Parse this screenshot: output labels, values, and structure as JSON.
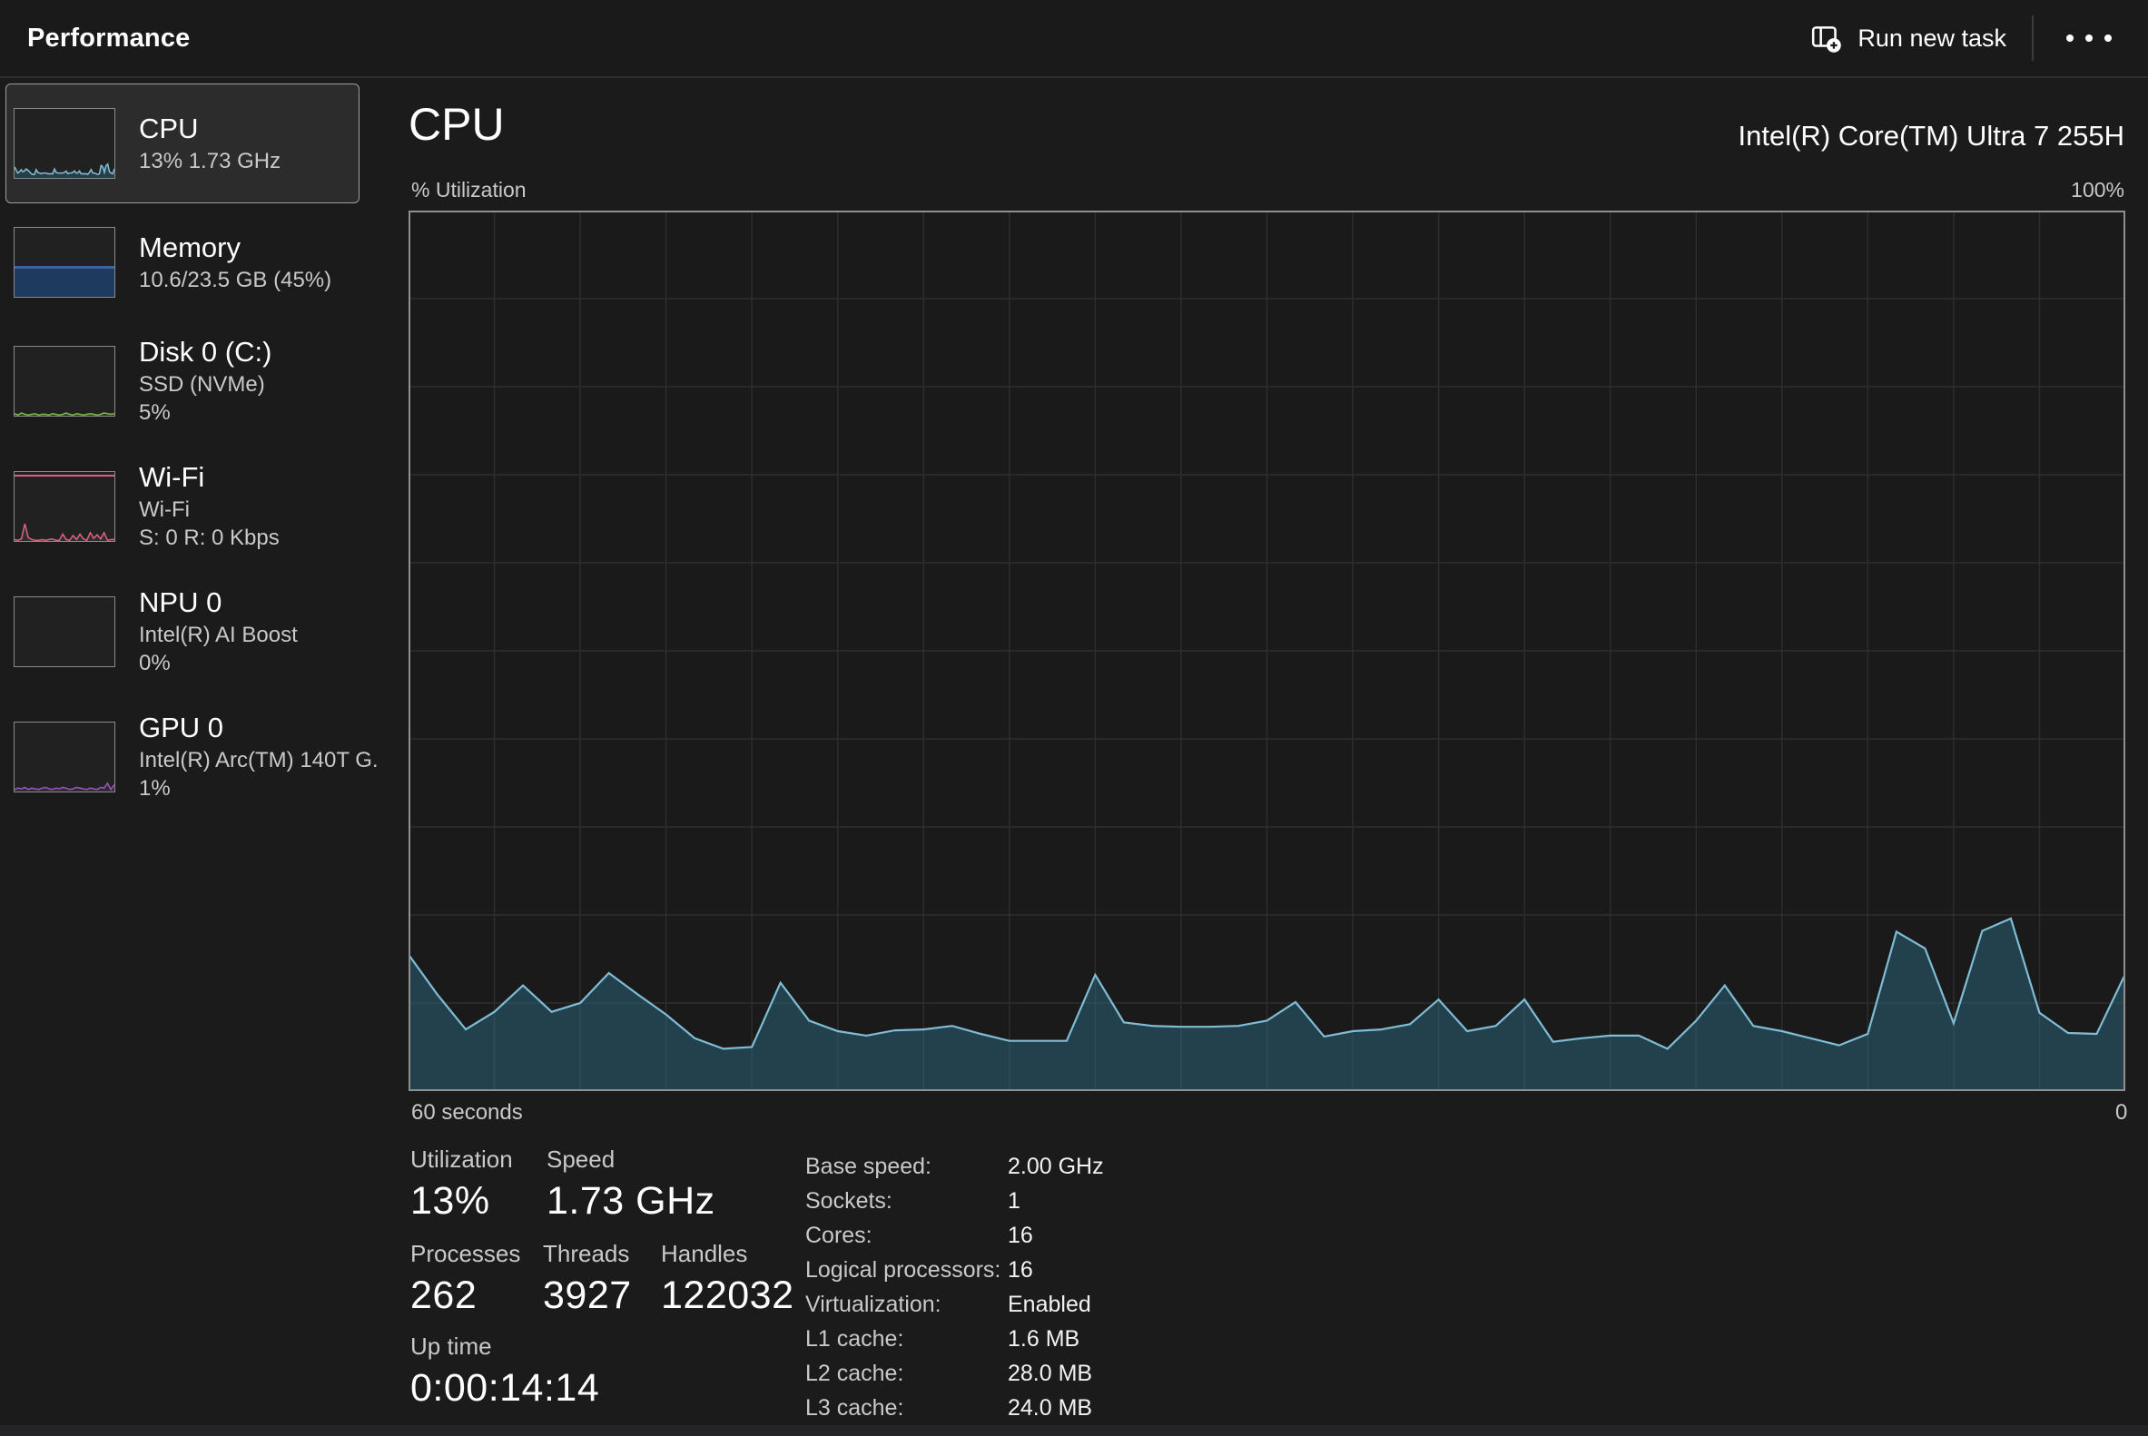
{
  "app": {
    "title": "Performance"
  },
  "toolbar": {
    "run_new_task": "Run new task",
    "more_options_icon": "ellipsis-horizontal"
  },
  "colors": {
    "background": "#1b1b1b",
    "chart_line": "#7fbcd6",
    "chart_fill": "rgba(47,118,145,0.42)",
    "chart_grid": "#2e2e2e",
    "chart_border": "#8f8f8f",
    "memory_fill": "#1e3a5f",
    "memory_edge": "#3a64a0",
    "disk_accent": "#7bb24a",
    "wifi_accent": "#d9607e",
    "gpu_accent": "#9b4fc0",
    "selected_border": "#9e9e9e"
  },
  "sidebar": {
    "items": [
      {
        "id": "cpu",
        "title": "CPU",
        "lines": [
          "13%  1.73 GHz"
        ],
        "selected": true,
        "accent": "#7fbcd6",
        "spark_scale": 100,
        "spark": [
          16,
          11,
          7,
          9,
          12,
          9,
          10,
          13,
          11,
          9,
          6,
          5,
          5,
          12,
          8,
          7,
          6,
          7,
          7,
          7,
          6,
          6,
          6,
          6,
          13,
          8,
          7,
          7,
          7,
          7,
          8,
          10,
          6,
          7,
          7,
          8,
          10,
          7,
          7,
          10,
          6,
          6,
          6,
          6,
          5,
          8,
          12,
          7,
          7,
          6,
          5,
          6,
          18,
          16,
          8,
          18,
          20,
          9,
          7,
          6,
          13
        ]
      },
      {
        "id": "memory",
        "title": "Memory",
        "lines": [
          "10.6/23.5 GB (45%)"
        ],
        "selected": false,
        "accent": "#3a64a0",
        "fill_percent": 45,
        "spark": []
      },
      {
        "id": "disk0",
        "title": "Disk 0 (C:)",
        "lines": [
          "SSD (NVMe)",
          "5%"
        ],
        "selected": false,
        "accent": "#7bb24a",
        "spark_scale": 100,
        "spark": [
          3,
          1,
          4,
          2,
          1,
          2,
          3,
          1,
          2,
          2,
          1,
          3,
          2,
          1,
          2,
          4,
          2,
          1,
          3,
          2,
          1,
          2,
          3,
          2,
          1,
          2,
          4,
          3,
          2,
          3
        ]
      },
      {
        "id": "wifi",
        "title": "Wi-Fi",
        "lines": [
          "Wi-Fi",
          "S: 0 R: 0 Kbps"
        ],
        "selected": false,
        "accent": "#d9607e",
        "topline": true,
        "spark_scale": 100,
        "spark": [
          2,
          1,
          3,
          25,
          5,
          2,
          1,
          1,
          2,
          1,
          2,
          3,
          1,
          1,
          10,
          2,
          1,
          8,
          2,
          10,
          3,
          1,
          12,
          4,
          9,
          3,
          12,
          1,
          2,
          2
        ]
      },
      {
        "id": "npu0",
        "title": "NPU 0",
        "lines": [
          "Intel(R) AI Boost",
          "0%"
        ],
        "selected": false,
        "accent": "#9b4fc0",
        "spark": []
      },
      {
        "id": "gpu0",
        "title": "GPU 0",
        "lines": [
          "Intel(R) Arc(TM) 140T G.",
          "1%"
        ],
        "selected": false,
        "accent": "#9b4fc0",
        "spark_scale": 100,
        "spark": [
          3,
          5,
          4,
          6,
          3,
          5,
          4,
          3,
          5,
          6,
          4,
          3,
          5,
          4,
          6,
          5,
          3,
          4,
          6,
          5,
          4,
          3,
          5,
          4,
          3,
          6,
          5,
          12,
          3,
          10
        ]
      }
    ]
  },
  "main": {
    "title": "CPU",
    "subtitle": "Intel(R) Core(TM) Ultra 7 255H",
    "axis": {
      "top_left": "% Utilization",
      "top_right": "100%",
      "bottom_left": "60 seconds",
      "bottom_right": "0"
    },
    "stats": {
      "utilization": {
        "label": "Utilization",
        "value": "13%"
      },
      "speed": {
        "label": "Speed",
        "value": "1.73 GHz"
      },
      "processes": {
        "label": "Processes",
        "value": "262"
      },
      "threads": {
        "label": "Threads",
        "value": "3927"
      },
      "handles": {
        "label": "Handles",
        "value": "122032"
      },
      "uptime": {
        "label": "Up time",
        "value": "0:00:14:14"
      }
    },
    "specs": [
      {
        "label": "Base speed:",
        "value": "2.00 GHz"
      },
      {
        "label": "Sockets:",
        "value": "1"
      },
      {
        "label": "Cores:",
        "value": "16"
      },
      {
        "label": "Logical processors:",
        "value": "16"
      },
      {
        "label": "Virtualization:",
        "value": "Enabled"
      },
      {
        "label": "L1 cache:",
        "value": "1.6 MB"
      },
      {
        "label": "L2 cache:",
        "value": "28.0 MB"
      },
      {
        "label": "L3 cache:",
        "value": "24.0 MB"
      }
    ]
  },
  "chart_data": {
    "type": "area",
    "title": "CPU % Utilization over 60 seconds",
    "xlabel_left": "60 seconds",
    "xlabel_right": "0",
    "ylabel": "% Utilization",
    "ylim": [
      0,
      100
    ],
    "x_seconds_ago_range": [
      60,
      0
    ],
    "grid": true,
    "grid_divisions_x": 20,
    "grid_divisions_y": 10,
    "values": [
      15.5,
      11,
      7,
      9,
      12,
      9,
      10,
      13.4,
      11,
      8.7,
      6,
      4.8,
      5,
      12.3,
      8,
      6.8,
      6.3,
      6.9,
      7,
      7.4,
      6.5,
      5.7,
      5.7,
      5.7,
      13.2,
      7.8,
      7.4,
      7.3,
      7.3,
      7.4,
      8,
      10.1,
      6.2,
      6.8,
      7,
      7.6,
      10.4,
      6.8,
      7.4,
      10.4,
      5.6,
      6,
      6.3,
      6.3,
      4.8,
      8,
      12,
      7.4,
      6.8,
      6,
      5.2,
      6.5,
      18.1,
      16.2,
      7.7,
      18.2,
      19.6,
      8.9,
      6.6,
      6.5,
      13.3
    ]
  }
}
